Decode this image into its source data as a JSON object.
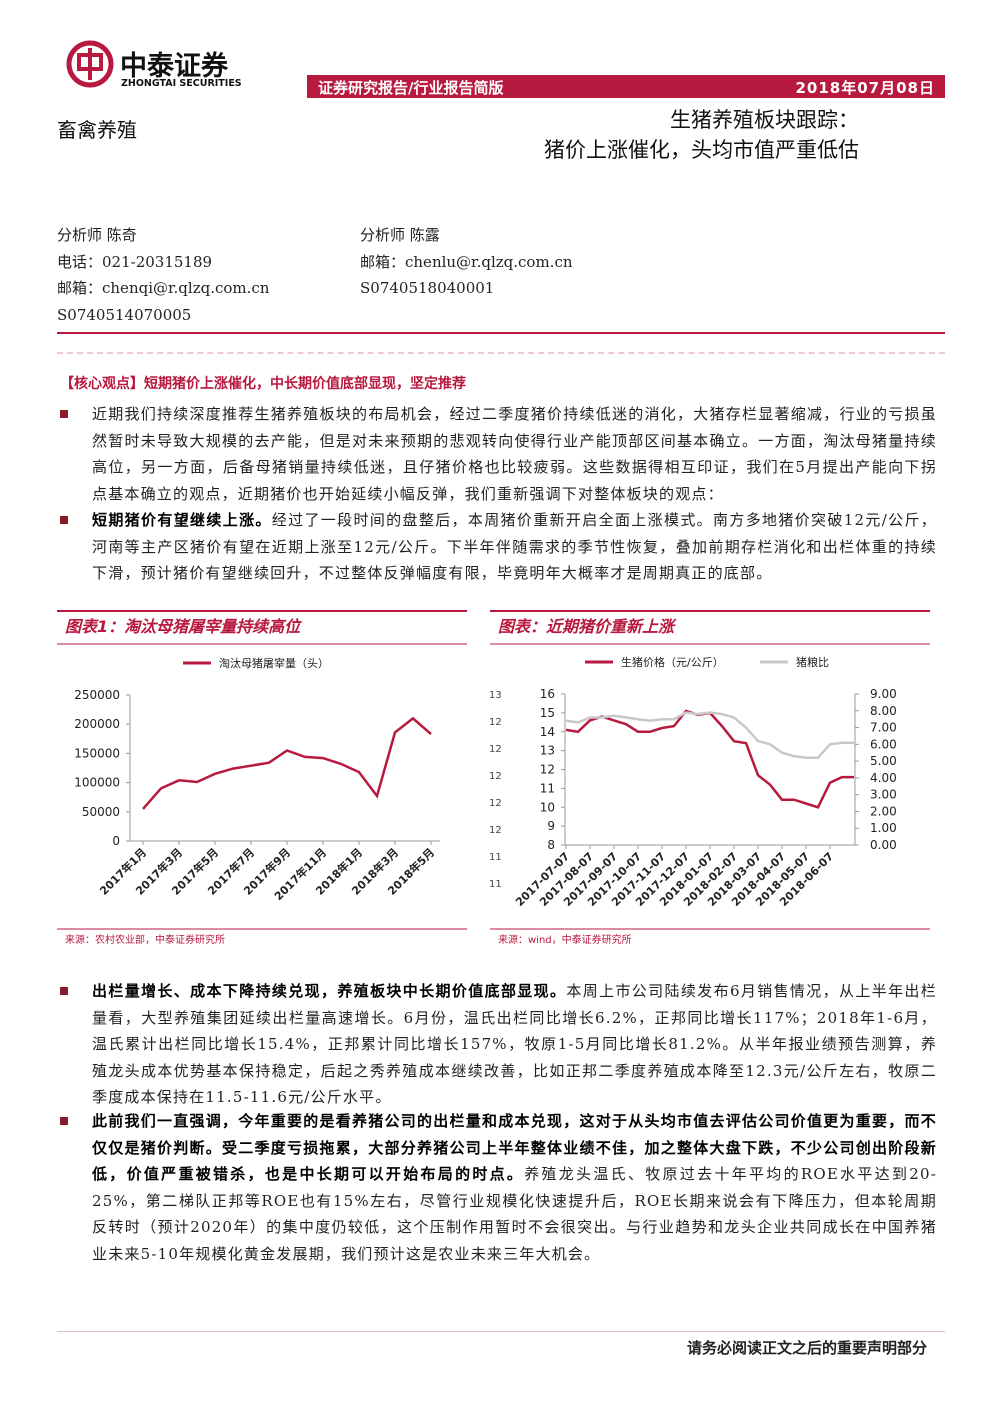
{
  "header": {
    "logo_cn": "中泰证券",
    "logo_en": "ZHONGTAI SECURITIES",
    "report_type": "证券研究报告/行业报告简版",
    "date": "2018年07月08日",
    "sector": "畜禽养殖",
    "title_line1": "生猪养殖板块跟踪：",
    "title_line2": "猪价上涨催化，头均市值严重低估"
  },
  "analysts": {
    "left": [
      "分析师 陈奇",
      "电话：021-20315189",
      "邮箱：chenqi@r.qlzq.com.cn",
      "S0740514070005"
    ],
    "right": [
      "分析师 陈露",
      "邮箱：chenlu@r.qlzq.com.cn",
      "S0740518040001"
    ]
  },
  "core_view": "【核心观点】短期猪价上涨催化，中长期价值底部显现，坚定推荐",
  "paragraphs": [
    {
      "text": "近期我们持续深度推荐生猪养殖板块的布局机会，经过二季度猪价持续低迷的消化，大猪存栏显著缩减，行业的亏损虽然暂时未导致大规模的去产能，但是对未来预期的悲观转向使得行业产能顶部区间基本确立。一方面，淘汰母猪量持续高位，另一方面，后备母猪销量持续低迷，且仔猪价格也比较疲弱。这些数据得相互印证，我们在5月提出产能向下拐点基本确立的观点，近期猪价也开始延续小幅反弹，我们重新强调下对整体板块的观点："
    },
    {
      "lead": "短期猪价有望继续上涨。",
      "text": "经过了一段时间的盘整后，本周猪价重新开启全面上涨模式。南方多地猪价突破12元/公斤，河南等主产区猪价有望在近期上涨至12元/公斤。下半年伴随需求的季节性恢复，叠加前期存栏消化和出栏体重的持续下滑，预计猪价有望继续回升，不过整体反弹幅度有限，毕竟明年大概率才是周期真正的底部。"
    },
    {
      "lead": "出栏量增长、成本下降持续兑现，养殖板块中长期价值底部显现。",
      "text": "本周上市公司陆续发布6月销售情况，从上半年出栏量看，大型养殖集团延续出栏量高速增长。6月份，温氏出栏同比增长6.2%，正邦同比增长117%；2018年1-6月，温氏累计出栏同比增长15.4%，正邦累计同比增长157%，牧原1-5月同比增长81.2%。从半年报业绩预告测算，养殖龙头成本优势基本保持稳定，后起之秀养殖成本继续改善，比如正邦二季度养殖成本降至12.3元/公斤左右，牧原二季度成本保持在11.5-11.6元/公斤水平。"
    },
    {
      "lead": "此前我们一直强调，今年重要的是看养猪公司的出栏量和成本兑现，这对于从头均市值去评估公司价值更为重要，而不仅仅是猪价判断。受二季度亏损拖累，大部分养猪公司上半年整体业绩不佳，加之整体大盘下跌，不少公司创出阶段新低，价值严重被错杀，也是中长期可以开始布局的时点。",
      "text": "养殖龙头温氏、牧原过去十年平均的ROE水平达到20-25%，第二梯队正邦等ROE也有15%左右，尽管行业规模化快速提升后，ROE长期来说会有下降压力，但本轮周期反转时（预计2020年）的集中度仍较低，这个压制作用暂时不会很突出。与行业趋势和龙头企业共同成长在中国养猪业未来5-10年规模化黄金发展期，我们预计这是农业未来三年大机会。"
    }
  ],
  "chart_data": [
    {
      "type": "line",
      "title": "图表1：淘汰母猪屠宰量持续高位",
      "source": "来源：农村农业部，中泰证券研究所",
      "categories": [
        "2017年1月",
        null,
        "2017年3月",
        null,
        "2017年5月",
        null,
        "2017年7月",
        null,
        "2017年9月",
        null,
        "2017年11月",
        null,
        "2018年1月",
        null,
        "2018年3月",
        null,
        "2018年5月"
      ],
      "series": [
        {
          "name": "淘汰母猪屠宰量（头）",
          "color": "#b8193f",
          "values": [
            55000,
            90000,
            104000,
            101000,
            115000,
            124000,
            129000,
            134000,
            155000,
            144000,
            142000,
            132000,
            118000,
            77000,
            186000,
            210000,
            183000
          ]
        }
      ],
      "ylim": [
        0,
        250000
      ],
      "yticks": [
        0,
        50000,
        100000,
        150000,
        200000,
        250000
      ],
      "grid": false
    },
    {
      "type": "line",
      "title": "图表：近期猪价重新上涨",
      "source": "来源：wind，中泰证券研究所",
      "categories": [
        "2017-07-07",
        null,
        "2017-08-07",
        null,
        "2017-09-07",
        null,
        "2017-10-07",
        null,
        "2017-11-07",
        null,
        "2017-12-07",
        null,
        "2018-01-07",
        null,
        "2018-02-07",
        null,
        "2018-03-07",
        null,
        "2018-04-07",
        null,
        "2018-05-07",
        null,
        "2018-06-07",
        null,
        null
      ],
      "series": [
        {
          "name": "生猪价格（元/公斤）",
          "color": "#b8193f",
          "values": [
            14.1,
            14.0,
            14.6,
            14.8,
            14.6,
            14.4,
            14.0,
            14.0,
            14.2,
            14.3,
            15.1,
            14.9,
            15.0,
            14.3,
            13.5,
            13.4,
            11.7,
            11.2,
            10.4,
            10.4,
            10.2,
            10.0,
            11.3,
            11.6,
            11.6
          ]
        },
        {
          "name": "猪粮比",
          "color": "#c8c8c8",
          "axis": "y2",
          "values": [
            7.4,
            7.3,
            7.6,
            7.6,
            7.7,
            7.6,
            7.5,
            7.4,
            7.5,
            7.5,
            7.9,
            7.8,
            7.9,
            7.8,
            7.6,
            7.0,
            6.2,
            6.0,
            5.5,
            5.3,
            5.2,
            5.2,
            6.0,
            6.1,
            6.1
          ]
        }
      ],
      "ylim": [
        8,
        16
      ],
      "yticks": [
        8,
        9,
        10,
        11,
        12,
        13,
        14,
        15,
        16
      ],
      "y2lim": [
        0,
        9
      ],
      "y2ticks": [
        {
          "value": 0,
          "label": "0.00"
        },
        {
          "value": 1,
          "label": "1.00"
        },
        {
          "value": 2,
          "label": "2.00"
        },
        {
          "value": 3,
          "label": "3.00"
        },
        {
          "value": 4,
          "label": "4.00"
        },
        {
          "value": 5,
          "label": "5.00"
        },
        {
          "value": 6,
          "label": "6.00"
        },
        {
          "value": 7,
          "label": "7.00"
        },
        {
          "value": 8,
          "label": "8.00"
        },
        {
          "value": 9,
          "label": "9.00"
        }
      ],
      "extra_labels": [
        "13",
        "12",
        "12",
        "12",
        "12",
        "12",
        "11",
        "11"
      ],
      "grid": false
    }
  ],
  "footer": "请务必阅读正文之后的重要声明部分"
}
